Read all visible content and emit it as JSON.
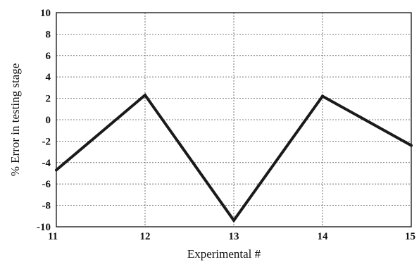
{
  "chart_data": {
    "type": "line",
    "xlabel": "Experimental  #",
    "ylabel": "%  Error  in testing stage",
    "xlim": [
      11,
      15
    ],
    "ylim": [
      -10,
      10
    ],
    "x_ticks": [
      "11",
      "12",
      "13",
      "14",
      "15"
    ],
    "y_ticks": [
      "10",
      "8",
      "6",
      "4",
      "2",
      "0",
      "-2",
      "-4",
      "-6",
      "-8",
      "-10"
    ],
    "grid": true,
    "series": [
      {
        "x": [
          11,
          12,
          13,
          14,
          15
        ],
        "values": [
          -4.7,
          2.3,
          -9.4,
          2.2,
          -2.4
        ],
        "color": "#1a1a1a"
      }
    ]
  }
}
